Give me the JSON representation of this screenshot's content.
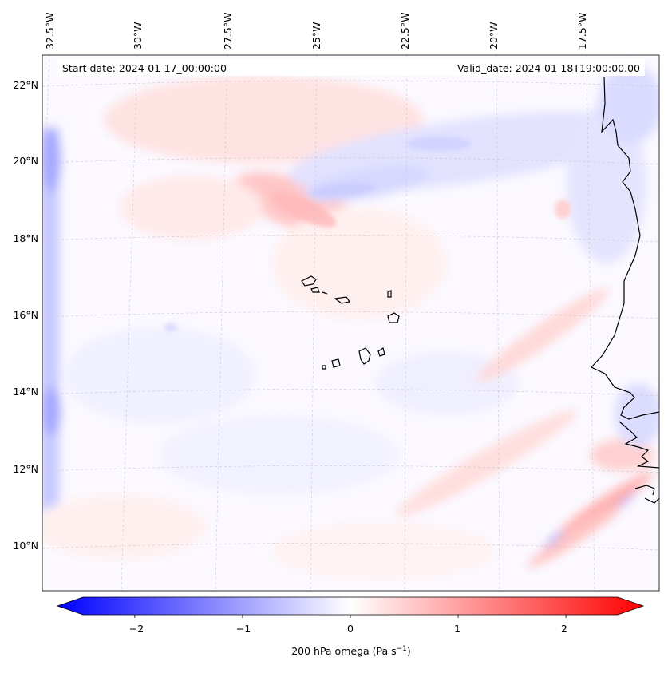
{
  "header": {
    "start_date": "Start date: 2024-01-17_00:00:00",
    "valid_date": "Valid_date: 2024-01-18T19:00:00.00"
  },
  "longitude_labels": [
    "32.5°W",
    "30°W",
    "27.5°W",
    "25°W",
    "22.5°W",
    "20°W",
    "17.5°W"
  ],
  "latitude_labels": [
    "22°N",
    "20°N",
    "18°N",
    "16°N",
    "14°N",
    "12°N",
    "10°N"
  ],
  "colorbar": {
    "ticks": [
      "−2",
      "−1",
      "0",
      "1",
      "2"
    ],
    "tick_values": [
      -2,
      -1,
      0,
      1,
      2
    ],
    "range": [
      -2.5,
      2.5
    ],
    "label": "200 hPa omega (Pa s",
    "label_exp": "−1",
    "label_end": ")",
    "cmap": "bwr",
    "min_color": "#0000ff",
    "mid_color": "#ffffff",
    "max_color": "#ff0000"
  },
  "map": {
    "projection": "Lambert conformal",
    "lon_range": [
      -33,
      -15.5
    ],
    "lat_range": [
      9,
      22.8
    ],
    "coastline_color": "#000000"
  }
}
